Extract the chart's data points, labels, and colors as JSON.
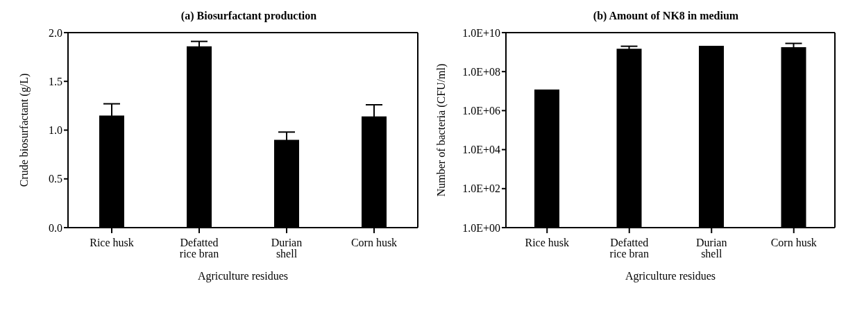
{
  "chart_data": [
    {
      "type": "bar",
      "title": "(a) Biosurfactant production",
      "xlabel": "Agriculture residues",
      "ylabel": "Crude biosurfactant (g/L)",
      "categories": [
        "Rice husk",
        "Defatted rice bran",
        "Durian shell",
        "Corn husk"
      ],
      "values": [
        1.15,
        1.86,
        0.9,
        1.14
      ],
      "errors": [
        0.12,
        0.05,
        0.08,
        0.12
      ],
      "color": "#000000",
      "ylim": [
        0,
        2
      ],
      "yticks": [
        {
          "value": 0,
          "label": "0.0"
        },
        {
          "value": 0.5,
          "label": "0.5"
        },
        {
          "value": 1,
          "label": "1.0"
        },
        {
          "value": 1.5,
          "label": "1.5"
        },
        {
          "value": 2,
          "label": "2.0"
        }
      ]
    },
    {
      "type": "bar",
      "title": "(b) Amount of NK8 in medium",
      "xlabel": "Agriculture residues",
      "ylabel": "Number of bacteria (CFU/ml)",
      "categories": [
        "Rice husk",
        "Defatted rice bran",
        "Durian shell",
        "Corn husk"
      ],
      "values": [
        12000000,
        1500000000,
        2100000000,
        1800000000
      ],
      "errors": [
        null,
        500000000,
        null,
        1000000000
      ],
      "color": "#000000",
      "log": true,
      "ylim": [
        1,
        10000000000
      ],
      "yticks": [
        {
          "value": 1,
          "label": "1.0E+00"
        },
        {
          "value": 100,
          "label": "1.0E+02"
        },
        {
          "value": 10000,
          "label": "1.0E+04"
        },
        {
          "value": 1000000,
          "label": "1.0E+06"
        },
        {
          "value": 100000000,
          "label": "1.0E+08"
        },
        {
          "value": 10000000000,
          "label": "1.0E+10"
        }
      ]
    }
  ]
}
